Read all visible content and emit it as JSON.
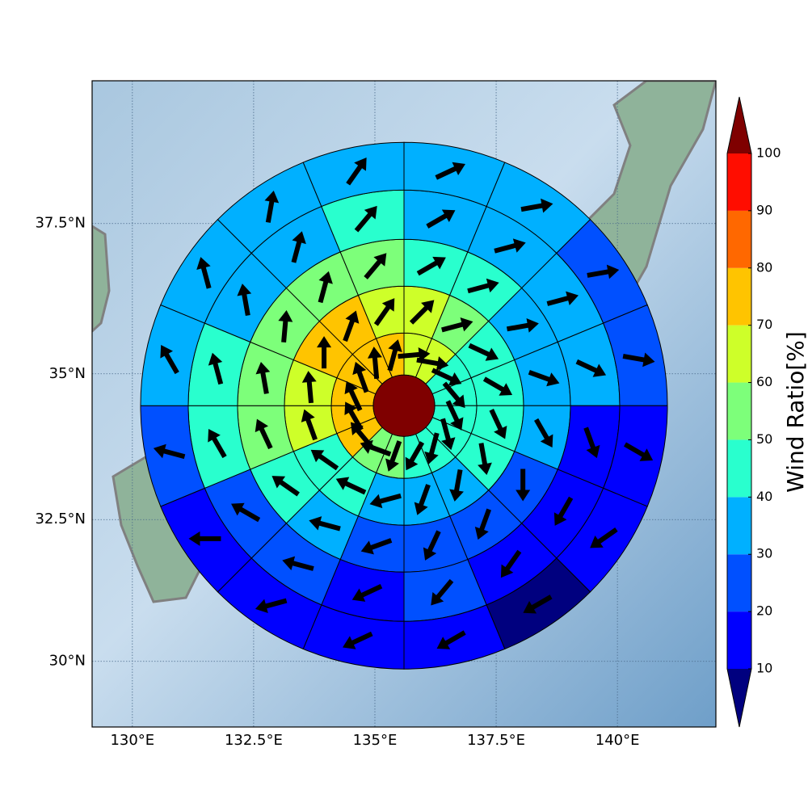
{
  "chart_data": {
    "type": "polar-sector-map",
    "xlim": [
      129.17,
      142.03
    ],
    "ylim": [
      28.82,
      39.8
    ],
    "xticks": [
      {
        "value": 130,
        "label": "130°E"
      },
      {
        "value": 132.5,
        "label": "132.5°E"
      },
      {
        "value": 135,
        "label": "135°E"
      },
      {
        "value": 137.5,
        "label": "137.5°E"
      },
      {
        "value": 140,
        "label": "140°E"
      }
    ],
    "yticks": [
      {
        "value": 30,
        "label": "30°N"
      },
      {
        "value": 32.5,
        "label": "32.5°N"
      },
      {
        "value": 35,
        "label": "35°N"
      },
      {
        "value": 37.5,
        "label": "37.5°N"
      }
    ],
    "grid": true,
    "center": {
      "lon": 135.6,
      "lat": 34.46
    },
    "center_value": 105,
    "rings": [
      {
        "values": [
          65,
          65,
          45,
          45,
          45,
          45,
          45,
          45,
          55,
          55,
          75,
          75,
          75,
          75,
          75,
          75
        ],
        "directions": [
          85,
          100,
          115,
          140,
          155,
          165,
          195,
          210,
          200,
          290,
          320,
          330,
          335,
          340,
          355,
          15
        ]
      },
      {
        "values": [
          65,
          55,
          45,
          45,
          45,
          45,
          35,
          35,
          35,
          45,
          45,
          65,
          65,
          75,
          75,
          65
        ],
        "directions": [
          45,
          75,
          115,
          120,
          155,
          170,
          190,
          200,
          255,
          295,
          305,
          340,
          355,
          0,
          20,
          35
        ]
      },
      {
        "values": [
          45,
          45,
          35,
          35,
          35,
          25,
          25,
          25,
          25,
          35,
          45,
          55,
          55,
          55,
          55,
          55
        ],
        "directions": [
          60,
          75,
          80,
          110,
          150,
          180,
          200,
          205,
          250,
          285,
          305,
          335,
          350,
          5,
          15,
          40
        ]
      },
      {
        "values": [
          35,
          35,
          35,
          35,
          15,
          15,
          15,
          25,
          15,
          25,
          25,
          45,
          45,
          35,
          35,
          45
        ],
        "directions": [
          60,
          75,
          75,
          115,
          160,
          210,
          215,
          220,
          245,
          285,
          300,
          330,
          345,
          350,
          15,
          40
        ]
      },
      {
        "values": [
          35,
          35,
          25,
          25,
          15,
          15,
          5,
          15,
          15,
          15,
          15,
          25,
          35,
          35,
          35,
          35
        ],
        "directions": [
          65,
          80,
          80,
          100,
          120,
          235,
          240,
          240,
          245,
          255,
          270,
          285,
          330,
          345,
          10,
          35
        ]
      }
    ],
    "colorbar": {
      "label": "Wind Ratio[%]",
      "ticks": [
        10,
        20,
        30,
        40,
        50,
        60,
        70,
        80,
        90,
        100
      ],
      "colors": [
        "#00007f",
        "#0000ff",
        "#0050ff",
        "#00b0ff",
        "#29ffce",
        "#7dff7a",
        "#ceff29",
        "#ffc400",
        "#ff6800",
        "#ff0d00",
        "#7f0000"
      ]
    }
  }
}
